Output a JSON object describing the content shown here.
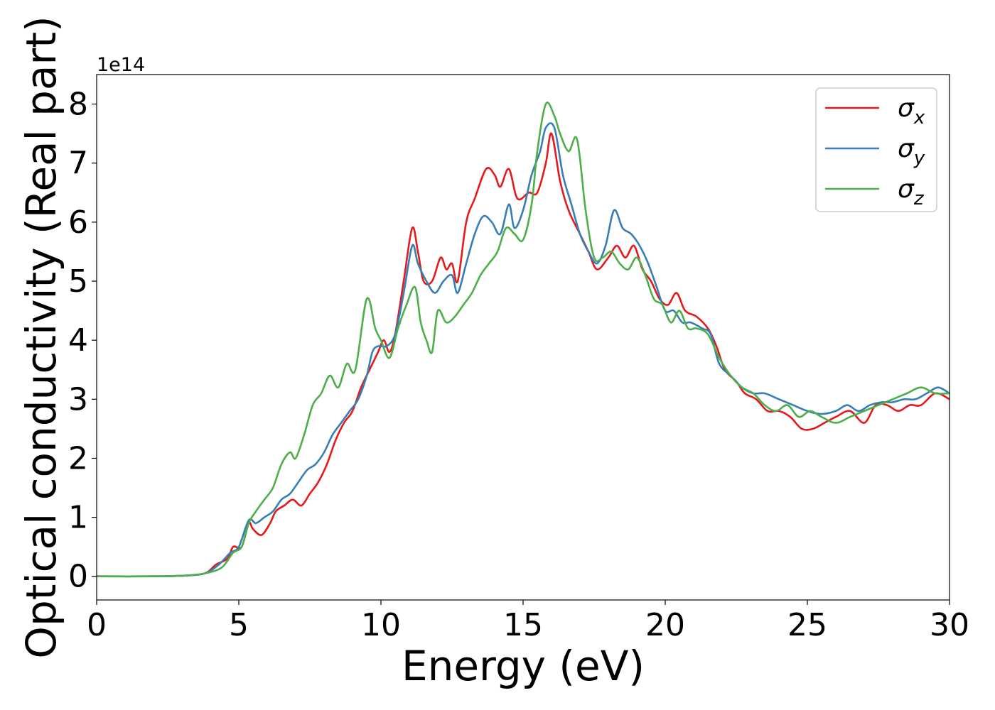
{
  "chart_data": {
    "type": "line",
    "title": "",
    "xlabel": "Energy (eV)",
    "ylabel": "Optical conductivity (Real part)",
    "y_offset_label": "1e14",
    "y_scale": 100000000000000.0,
    "xlim": [
      0,
      30
    ],
    "ylim": [
      -0.4,
      8.5
    ],
    "x_ticks": [
      0,
      5,
      10,
      15,
      20,
      25,
      30
    ],
    "x_tick_labels": [
      "0",
      "5",
      "10",
      "15",
      "20",
      "25",
      "30"
    ],
    "y_ticks": [
      0,
      1,
      2,
      3,
      4,
      5,
      6,
      7,
      8
    ],
    "y_tick_labels": [
      "0",
      "1",
      "2",
      "3",
      "4",
      "5",
      "6",
      "7",
      "8"
    ],
    "grid": false,
    "legend_position": "top-right",
    "legend": [
      {
        "symbol": "σ",
        "subscript": "x",
        "color": "#e41a1c"
      },
      {
        "symbol": "σ",
        "subscript": "y",
        "color": "#377eb8"
      },
      {
        "symbol": "σ",
        "subscript": "z",
        "color": "#4daf4a"
      }
    ],
    "series": [
      {
        "name": "σx",
        "color": "#e41a1c",
        "points": [
          [
            0,
            0
          ],
          [
            2,
            0
          ],
          [
            3,
            0.01
          ],
          [
            3.8,
            0.05
          ],
          [
            4.2,
            0.2
          ],
          [
            4.6,
            0.3
          ],
          [
            4.8,
            0.5
          ],
          [
            5.1,
            0.5
          ],
          [
            5.35,
            0.9
          ],
          [
            5.5,
            0.8
          ],
          [
            5.8,
            0.7
          ],
          [
            6.1,
            0.9
          ],
          [
            6.3,
            1.1
          ],
          [
            6.6,
            1.2
          ],
          [
            6.9,
            1.3
          ],
          [
            7.2,
            1.2
          ],
          [
            7.5,
            1.4
          ],
          [
            7.8,
            1.6
          ],
          [
            8.1,
            1.9
          ],
          [
            8.4,
            2.3
          ],
          [
            8.7,
            2.6
          ],
          [
            9.0,
            2.8
          ],
          [
            9.3,
            3.2
          ],
          [
            9.6,
            3.5
          ],
          [
            9.9,
            3.8
          ],
          [
            10.1,
            4.0
          ],
          [
            10.3,
            3.8
          ],
          [
            10.5,
            4.1
          ],
          [
            10.8,
            5.0
          ],
          [
            11.1,
            5.9
          ],
          [
            11.3,
            5.5
          ],
          [
            11.5,
            5.0
          ],
          [
            11.8,
            5.0
          ],
          [
            12.1,
            5.4
          ],
          [
            12.3,
            5.2
          ],
          [
            12.5,
            5.3
          ],
          [
            12.7,
            5.0
          ],
          [
            13.0,
            6.0
          ],
          [
            13.3,
            6.4
          ],
          [
            13.7,
            6.9
          ],
          [
            14.0,
            6.8
          ],
          [
            14.2,
            6.6
          ],
          [
            14.5,
            6.9
          ],
          [
            14.8,
            6.4
          ],
          [
            15.2,
            6.5
          ],
          [
            15.5,
            6.5
          ],
          [
            15.8,
            7.0
          ],
          [
            16.0,
            7.5
          ],
          [
            16.3,
            6.7
          ],
          [
            16.6,
            6.2
          ],
          [
            17.0,
            5.8
          ],
          [
            17.3,
            5.5
          ],
          [
            17.6,
            5.2
          ],
          [
            18.0,
            5.4
          ],
          [
            18.3,
            5.6
          ],
          [
            18.6,
            5.4
          ],
          [
            18.9,
            5.6
          ],
          [
            19.2,
            5.2
          ],
          [
            19.5,
            5.0
          ],
          [
            19.8,
            4.7
          ],
          [
            20.1,
            4.6
          ],
          [
            20.4,
            4.8
          ],
          [
            20.7,
            4.5
          ],
          [
            21.1,
            4.4
          ],
          [
            21.5,
            4.2
          ],
          [
            21.8,
            3.9
          ],
          [
            22.1,
            3.5
          ],
          [
            22.5,
            3.3
          ],
          [
            22.8,
            3.1
          ],
          [
            23.2,
            3.0
          ],
          [
            23.6,
            2.8
          ],
          [
            24.0,
            2.8
          ],
          [
            24.4,
            2.7
          ],
          [
            24.8,
            2.5
          ],
          [
            25.2,
            2.5
          ],
          [
            25.6,
            2.6
          ],
          [
            26.0,
            2.7
          ],
          [
            26.5,
            2.8
          ],
          [
            27.0,
            2.6
          ],
          [
            27.4,
            2.9
          ],
          [
            27.8,
            2.9
          ],
          [
            28.2,
            2.8
          ],
          [
            28.6,
            2.9
          ],
          [
            29.0,
            2.9
          ],
          [
            29.5,
            3.1
          ],
          [
            30.0,
            3.0
          ]
        ]
      },
      {
        "name": "σy",
        "color": "#377eb8",
        "points": [
          [
            0,
            0
          ],
          [
            2,
            0
          ],
          [
            3,
            0.01
          ],
          [
            3.8,
            0.05
          ],
          [
            4.3,
            0.2
          ],
          [
            4.7,
            0.4
          ],
          [
            5.0,
            0.5
          ],
          [
            5.35,
            0.95
          ],
          [
            5.6,
            0.9
          ],
          [
            5.9,
            1.0
          ],
          [
            6.2,
            1.1
          ],
          [
            6.5,
            1.3
          ],
          [
            6.8,
            1.4
          ],
          [
            7.1,
            1.6
          ],
          [
            7.4,
            1.8
          ],
          [
            7.7,
            1.9
          ],
          [
            8.0,
            2.1
          ],
          [
            8.3,
            2.4
          ],
          [
            8.6,
            2.6
          ],
          [
            8.9,
            2.8
          ],
          [
            9.2,
            3.0
          ],
          [
            9.5,
            3.4
          ],
          [
            9.7,
            3.8
          ],
          [
            9.9,
            3.9
          ],
          [
            10.2,
            3.9
          ],
          [
            10.5,
            4.1
          ],
          [
            10.8,
            4.8
          ],
          [
            11.1,
            5.6
          ],
          [
            11.3,
            5.3
          ],
          [
            11.6,
            5.0
          ],
          [
            11.9,
            4.8
          ],
          [
            12.2,
            5.0
          ],
          [
            12.5,
            5.1
          ],
          [
            12.7,
            4.8
          ],
          [
            13.0,
            5.3
          ],
          [
            13.3,
            5.8
          ],
          [
            13.6,
            6.1
          ],
          [
            13.9,
            6.0
          ],
          [
            14.2,
            5.8
          ],
          [
            14.5,
            6.3
          ],
          [
            14.7,
            5.9
          ],
          [
            15.0,
            6.2
          ],
          [
            15.3,
            6.8
          ],
          [
            15.6,
            7.2
          ],
          [
            15.8,
            7.6
          ],
          [
            16.1,
            7.6
          ],
          [
            16.4,
            6.8
          ],
          [
            16.7,
            6.3
          ],
          [
            17.0,
            5.8
          ],
          [
            17.3,
            5.5
          ],
          [
            17.6,
            5.3
          ],
          [
            17.9,
            5.6
          ],
          [
            18.2,
            6.2
          ],
          [
            18.5,
            5.9
          ],
          [
            18.8,
            5.8
          ],
          [
            19.1,
            5.6
          ],
          [
            19.4,
            5.3
          ],
          [
            19.7,
            4.9
          ],
          [
            20.0,
            4.5
          ],
          [
            20.3,
            4.5
          ],
          [
            20.6,
            4.3
          ],
          [
            20.9,
            4.3
          ],
          [
            21.3,
            4.2
          ],
          [
            21.6,
            4.1
          ],
          [
            21.9,
            3.6
          ],
          [
            22.3,
            3.4
          ],
          [
            22.7,
            3.2
          ],
          [
            23.1,
            3.1
          ],
          [
            23.5,
            3.1
          ],
          [
            24.0,
            3.0
          ],
          [
            24.5,
            2.9
          ],
          [
            25.0,
            2.8
          ],
          [
            25.5,
            2.75
          ],
          [
            26.0,
            2.8
          ],
          [
            26.4,
            2.9
          ],
          [
            26.8,
            2.8
          ],
          [
            27.2,
            2.9
          ],
          [
            27.6,
            2.95
          ],
          [
            28.0,
            2.95
          ],
          [
            28.4,
            3.0
          ],
          [
            28.8,
            3.0
          ],
          [
            29.2,
            3.1
          ],
          [
            29.6,
            3.2
          ],
          [
            30.0,
            3.1
          ]
        ]
      },
      {
        "name": "σz",
        "color": "#4daf4a",
        "points": [
          [
            0,
            0
          ],
          [
            2,
            0
          ],
          [
            3,
            0.01
          ],
          [
            3.8,
            0.05
          ],
          [
            4.4,
            0.15
          ],
          [
            4.8,
            0.4
          ],
          [
            5.1,
            0.5
          ],
          [
            5.35,
            0.9
          ],
          [
            5.6,
            1.1
          ],
          [
            5.9,
            1.3
          ],
          [
            6.2,
            1.5
          ],
          [
            6.5,
            1.9
          ],
          [
            6.8,
            2.1
          ],
          [
            7.0,
            2.0
          ],
          [
            7.3,
            2.4
          ],
          [
            7.6,
            2.9
          ],
          [
            7.9,
            3.1
          ],
          [
            8.2,
            3.4
          ],
          [
            8.5,
            3.2
          ],
          [
            8.8,
            3.6
          ],
          [
            9.1,
            3.5
          ],
          [
            9.5,
            4.7
          ],
          [
            9.8,
            4.2
          ],
          [
            10.0,
            4.0
          ],
          [
            10.3,
            3.7
          ],
          [
            10.6,
            4.2
          ],
          [
            10.9,
            4.6
          ],
          [
            11.2,
            4.9
          ],
          [
            11.4,
            4.3
          ],
          [
            11.6,
            4.0
          ],
          [
            11.8,
            3.8
          ],
          [
            12.0,
            4.5
          ],
          [
            12.3,
            4.3
          ],
          [
            12.6,
            4.4
          ],
          [
            12.9,
            4.6
          ],
          [
            13.2,
            4.8
          ],
          [
            13.5,
            5.1
          ],
          [
            13.8,
            5.3
          ],
          [
            14.1,
            5.5
          ],
          [
            14.4,
            5.9
          ],
          [
            14.7,
            5.8
          ],
          [
            15.0,
            5.7
          ],
          [
            15.3,
            6.3
          ],
          [
            15.5,
            7.2
          ],
          [
            15.8,
            8.0
          ],
          [
            16.1,
            7.8
          ],
          [
            16.3,
            7.5
          ],
          [
            16.6,
            7.2
          ],
          [
            16.9,
            7.4
          ],
          [
            17.2,
            6.2
          ],
          [
            17.5,
            5.4
          ],
          [
            17.8,
            5.4
          ],
          [
            18.1,
            5.5
          ],
          [
            18.4,
            5.3
          ],
          [
            18.7,
            5.2
          ],
          [
            19.0,
            5.4
          ],
          [
            19.3,
            5.1
          ],
          [
            19.6,
            4.7
          ],
          [
            19.9,
            4.6
          ],
          [
            20.2,
            4.3
          ],
          [
            20.5,
            4.5
          ],
          [
            20.8,
            4.2
          ],
          [
            21.1,
            4.2
          ],
          [
            21.5,
            4.1
          ],
          [
            21.9,
            3.7
          ],
          [
            22.3,
            3.4
          ],
          [
            22.7,
            3.2
          ],
          [
            23.1,
            3.1
          ],
          [
            23.5,
            2.9
          ],
          [
            23.9,
            2.8
          ],
          [
            24.3,
            2.9
          ],
          [
            24.7,
            2.7
          ],
          [
            25.1,
            2.8
          ],
          [
            25.5,
            2.7
          ],
          [
            26.0,
            2.6
          ],
          [
            26.5,
            2.7
          ],
          [
            27.0,
            2.8
          ],
          [
            27.5,
            2.9
          ],
          [
            28.0,
            3.0
          ],
          [
            28.5,
            3.1
          ],
          [
            29.0,
            3.2
          ],
          [
            29.5,
            3.1
          ],
          [
            30.0,
            3.1
          ]
        ]
      }
    ]
  }
}
